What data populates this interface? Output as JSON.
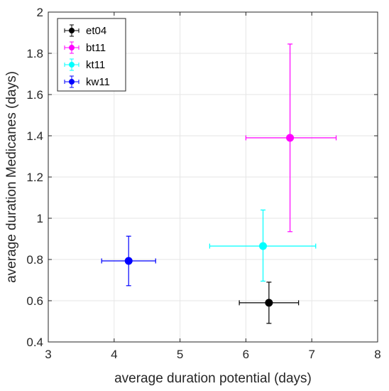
{
  "chart_data": {
    "type": "scatter",
    "title": "",
    "xlabel": "average duration potential (days)",
    "ylabel": "average duration Medicanes (days)",
    "xlim": [
      3,
      8
    ],
    "ylim": [
      0.4,
      2
    ],
    "x_ticks": [
      3,
      4,
      5,
      6,
      7,
      8
    ],
    "y_ticks": [
      0.4,
      0.6,
      0.8,
      1,
      1.2,
      1.4,
      1.6,
      1.8,
      2
    ],
    "x_tick_labels": [
      "3",
      "4",
      "5",
      "6",
      "7",
      "8"
    ],
    "y_tick_labels": [
      "0.4",
      "0.6",
      "0.8",
      "1",
      "1.2",
      "1.4",
      "1.6",
      "1.8",
      "2"
    ],
    "grid": true,
    "legend_position": "top-left",
    "series": [
      {
        "name": "et04",
        "color": "#000000",
        "x": 6.35,
        "y": 0.59,
        "x_err": [
          5.9,
          6.8
        ],
        "y_err": [
          0.49,
          0.69
        ]
      },
      {
        "name": "bt11",
        "color": "#ff00ff",
        "x": 6.67,
        "y": 1.39,
        "x_err": [
          6.0,
          7.37
        ],
        "y_err": [
          0.935,
          1.845
        ]
      },
      {
        "name": "kt11",
        "color": "#00ffff",
        "x": 6.26,
        "y": 0.865,
        "x_err": [
          5.45,
          7.06
        ],
        "y_err": [
          0.695,
          1.04
        ]
      },
      {
        "name": "kw11",
        "color": "#0000ff",
        "x": 4.22,
        "y": 0.793,
        "x_err": [
          3.81,
          4.63
        ],
        "y_err": [
          0.673,
          0.913
        ]
      }
    ]
  }
}
